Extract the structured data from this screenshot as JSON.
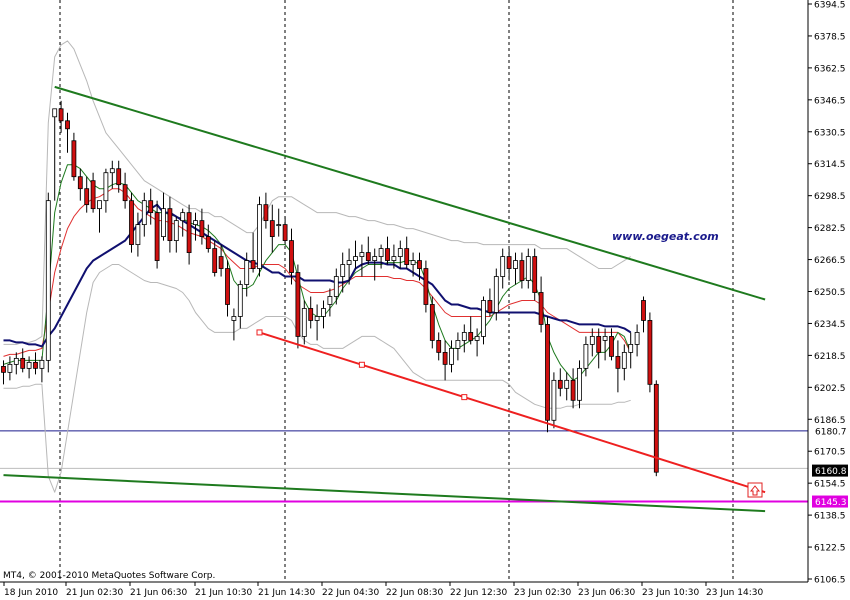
{
  "chart_data": {
    "type": "candlestick",
    "instrument_timeframe": "",
    "ylim": [
      6106.5,
      6394.5
    ],
    "y_ticks": [
      "6394.5",
      "6378.5",
      "6362.5",
      "6346.5",
      "6330.5",
      "6314.5",
      "6298.5",
      "6282.5",
      "6266.5",
      "6250.5",
      "6234.5",
      "6218.5",
      "6202.5",
      "6186.5",
      "6170.5",
      "6154.5",
      "6138.5",
      "6122.5",
      "6106.5"
    ],
    "x_ticks": [
      "18 Jun 2010",
      "21 Jun 02:30",
      "21 Jun 06:30",
      "21 Jun 10:30",
      "21 Jun 14:30",
      "22 Jun 04:30",
      "22 Jun 08:30",
      "22 Jun 12:30",
      "23 Jun 02:30",
      "23 Jun 06:30",
      "23 Jun 10:30",
      "23 Jun 14:30"
    ],
    "candles": [
      [
        6213,
        6216,
        6204,
        6210
      ],
      [
        6210,
        6218,
        6206,
        6214
      ],
      [
        6214,
        6220,
        6209,
        6217
      ],
      [
        6217,
        6222,
        6210,
        6212
      ],
      [
        6212,
        6218,
        6207,
        6215
      ],
      [
        6215,
        6220,
        6209,
        6212
      ],
      [
        6212,
        6218,
        6205,
        6216
      ],
      [
        6216,
        6300,
        6210,
        6296
      ],
      [
        6338,
        6342,
        6296,
        6342
      ],
      [
        6342,
        6346,
        6330,
        6336
      ],
      [
        6336,
        6340,
        6320,
        6332
      ],
      [
        6326,
        6330,
        6306,
        6308
      ],
      [
        6308,
        6312,
        6296,
        6302
      ],
      [
        6302,
        6308,
        6290,
        6294
      ],
      [
        6306,
        6310,
        6290,
        6292
      ],
      [
        6292,
        6296,
        6280,
        6296
      ],
      [
        6296,
        6312,
        6290,
        6310
      ],
      [
        6310,
        6316,
        6302,
        6312
      ],
      [
        6312,
        6316,
        6300,
        6304
      ],
      [
        6304,
        6310,
        6292,
        6296
      ],
      [
        6296,
        6300,
        6270,
        6274
      ],
      [
        6274,
        6290,
        6268,
        6284
      ],
      [
        6284,
        6300,
        6278,
        6296
      ],
      [
        6296,
        6302,
        6284,
        6290
      ],
      [
        6290,
        6296,
        6262,
        6266
      ],
      [
        6278,
        6300,
        6276,
        6292
      ],
      [
        6292,
        6298,
        6270,
        6276
      ],
      [
        6276,
        6288,
        6270,
        6286
      ],
      [
        6286,
        6292,
        6278,
        6290
      ],
      [
        6290,
        6294,
        6264,
        6270
      ],
      [
        6284,
        6290,
        6276,
        6286
      ],
      [
        6286,
        6292,
        6274,
        6278
      ],
      [
        6278,
        6284,
        6270,
        6272
      ],
      [
        6272,
        6276,
        6258,
        6260
      ],
      [
        6268,
        6274,
        6258,
        6262
      ],
      [
        6262,
        6266,
        6238,
        6244
      ],
      [
        6236,
        6242,
        6226,
        6238
      ],
      [
        6238,
        6256,
        6232,
        6254
      ],
      [
        6254,
        6270,
        6248,
        6266
      ],
      [
        6266,
        6280,
        6260,
        6262
      ],
      [
        6262,
        6298,
        6258,
        6294
      ],
      [
        6294,
        6300,
        6282,
        6286
      ],
      [
        6286,
        6294,
        6270,
        6278
      ],
      [
        6284,
        6292,
        6278,
        6284
      ],
      [
        6284,
        6288,
        6274,
        6276
      ],
      [
        6276,
        6282,
        6254,
        6260
      ],
      [
        6260,
        6264,
        6222,
        6228
      ],
      [
        6228,
        6246,
        6224,
        6242
      ],
      [
        6242,
        6248,
        6232,
        6236
      ],
      [
        6236,
        6244,
        6226,
        6238
      ],
      [
        6238,
        6246,
        6232,
        6242
      ],
      [
        6244,
        6252,
        6238,
        6248
      ],
      [
        6248,
        6262,
        6244,
        6258
      ],
      [
        6258,
        6270,
        6250,
        6264
      ],
      [
        6264,
        6272,
        6254,
        6266
      ],
      [
        6266,
        6276,
        6262,
        6268
      ],
      [
        6268,
        6274,
        6258,
        6270
      ],
      [
        6270,
        6278,
        6264,
        6266
      ],
      [
        6266,
        6272,
        6256,
        6268
      ],
      [
        6268,
        6274,
        6262,
        6272
      ],
      [
        6272,
        6278,
        6264,
        6266
      ],
      [
        6266,
        6274,
        6262,
        6268
      ],
      [
        6268,
        6276,
        6262,
        6272
      ],
      [
        6272,
        6278,
        6262,
        6264
      ],
      [
        6264,
        6270,
        6258,
        6266
      ],
      [
        6266,
        6270,
        6256,
        6262
      ],
      [
        6262,
        6266,
        6240,
        6244
      ],
      [
        6244,
        6248,
        6222,
        6226
      ],
      [
        6226,
        6230,
        6216,
        6220
      ],
      [
        6220,
        6226,
        6206,
        6214
      ],
      [
        6214,
        6226,
        6210,
        6222
      ],
      [
        6222,
        6230,
        6216,
        6226
      ],
      [
        6226,
        6234,
        6220,
        6230
      ],
      [
        6230,
        6238,
        6224,
        6226
      ],
      [
        6226,
        6232,
        6218,
        6228
      ],
      [
        6228,
        6248,
        6224,
        6246
      ],
      [
        6246,
        6252,
        6238,
        6240
      ],
      [
        6240,
        6262,
        6236,
        6258
      ],
      [
        6258,
        6272,
        6252,
        6268
      ],
      [
        6268,
        6272,
        6256,
        6262
      ],
      [
        6262,
        6270,
        6254,
        6266
      ],
      [
        6266,
        6270,
        6252,
        6256
      ],
      [
        6256,
        6272,
        6252,
        6268
      ],
      [
        6268,
        6272,
        6246,
        6250
      ],
      [
        6250,
        6258,
        6230,
        6234
      ],
      [
        6234,
        6238,
        6180,
        6186
      ],
      [
        6186,
        6210,
        6182,
        6206
      ],
      [
        6206,
        6212,
        6198,
        6202
      ],
      [
        6202,
        6210,
        6196,
        6206
      ],
      [
        6206,
        6212,
        6192,
        6196
      ],
      [
        6196,
        6216,
        6192,
        6212
      ],
      [
        6212,
        6228,
        6208,
        6224
      ],
      [
        6224,
        6232,
        6218,
        6228
      ],
      [
        6228,
        6232,
        6212,
        6220
      ],
      [
        6226,
        6232,
        6216,
        6228
      ],
      [
        6228,
        6232,
        6216,
        6218
      ],
      [
        6218,
        6226,
        6200,
        6212
      ],
      [
        6212,
        6224,
        6206,
        6220
      ],
      [
        6220,
        6230,
        6212,
        6224
      ],
      [
        6224,
        6234,
        6218,
        6230
      ],
      [
        6246,
        6248,
        6230,
        6236
      ],
      [
        6236,
        6240,
        6200,
        6204
      ],
      [
        6204,
        6206,
        6158,
        6160
      ]
    ],
    "bb_upper": [
      6224,
      6224,
      6224,
      6225,
      6225,
      6226,
      6228,
      6335,
      6368,
      6374,
      6376,
      6372,
      6364,
      6356,
      6346,
      6338,
      6330,
      6326,
      6322,
      6318,
      6314,
      6310,
      6306,
      6304,
      6302,
      6300,
      6298,
      6296,
      6294,
      6292,
      6292,
      6290,
      6290,
      6288,
      6288,
      6286,
      6284,
      6282,
      6280,
      6280,
      6284,
      6290,
      6296,
      6298,
      6298,
      6298,
      6296,
      6294,
      6292,
      6290,
      6290,
      6290,
      6290,
      6289,
      6288,
      6288,
      6287,
      6286,
      6286,
      6285,
      6284,
      6284,
      6283,
      6282,
      6282,
      6281,
      6280,
      6279,
      6278,
      6277,
      6276,
      6276,
      6275,
      6275,
      6275,
      6274,
      6274,
      6274,
      6274,
      6274,
      6274,
      6274,
      6274,
      6274,
      6272,
      6272,
      6272,
      6272,
      6272,
      6270,
      6268,
      6266,
      6264,
      6262,
      6262,
      6262,
      6264,
      6266,
      6268
    ],
    "bb_lower": [
      6202,
      6202,
      6202,
      6203,
      6203,
      6204,
      6204,
      6158,
      6150,
      6160,
      6180,
      6200,
      6220,
      6240,
      6255,
      6260,
      6262,
      6264,
      6264,
      6262,
      6260,
      6258,
      6256,
      6255,
      6255,
      6254,
      6253,
      6252,
      6250,
      6246,
      6240,
      6236,
      6232,
      6230,
      6230,
      6230,
      6230,
      6232,
      6232,
      6234,
      6236,
      6238,
      6238,
      6238,
      6238,
      6236,
      6230,
      6226,
      6224,
      6224,
      6222,
      6222,
      6222,
      6222,
      6224,
      6226,
      6228,
      6228,
      6228,
      6226,
      6224,
      6222,
      6218,
      6214,
      6210,
      6208,
      6206,
      6206,
      6206,
      6206,
      6206,
      6206,
      6206,
      6206,
      6206,
      6206,
      6206,
      6206,
      6206,
      6204,
      6200,
      6198,
      6196,
      6194,
      6193,
      6192,
      6192,
      6192,
      6193,
      6193,
      6194,
      6194,
      6194,
      6194,
      6194,
      6194,
      6195,
      6195,
      6196
    ],
    "ma_slow": [
      6226,
      6226,
      6225,
      6225,
      6224,
      6224,
      6223,
      6228,
      6232,
      6238,
      6244,
      6250,
      6256,
      6262,
      6266,
      6268,
      6270,
      6272,
      6274,
      6276,
      6280,
      6284,
      6288,
      6292,
      6294,
      6290,
      6290,
      6288,
      6286,
      6284,
      6282,
      6280,
      6278,
      6276,
      6274,
      6272,
      6270,
      6268,
      6266,
      6265,
      6264,
      6262,
      6260,
      6260,
      6258,
      6258,
      6258,
      6256,
      6256,
      6256,
      6256,
      6256,
      6255,
      6255,
      6256,
      6262,
      6264,
      6265,
      6265,
      6265,
      6264,
      6264,
      6262,
      6262,
      6260,
      6258,
      6256,
      6254,
      6250,
      6246,
      6244,
      6244,
      6243,
      6242,
      6242,
      6241,
      6240,
      6240,
      6240,
      6240,
      6240,
      6240,
      6240,
      6240,
      6239,
      6238,
      6237,
      6236,
      6236,
      6235,
      6234,
      6234,
      6234,
      6234,
      6233,
      6233,
      6233,
      6232,
      6230
    ],
    "ema_red": [
      6218,
      6219,
      6219,
      6220,
      6221,
      6221,
      6222,
      6240,
      6260,
      6272,
      6282,
      6288,
      6292,
      6295,
      6297,
      6298,
      6300,
      6302,
      6302,
      6300,
      6296,
      6292,
      6290,
      6288,
      6286,
      6286,
      6285,
      6284,
      6282,
      6280,
      6279,
      6278,
      6276,
      6274,
      6272,
      6268,
      6265,
      6262,
      6262,
      6262,
      6264,
      6264,
      6264,
      6264,
      6262,
      6258,
      6254,
      6252,
      6250,
      6250,
      6250,
      6251,
      6252,
      6254,
      6256,
      6258,
      6258,
      6258,
      6258,
      6258,
      6258,
      6257,
      6257,
      6256,
      6256,
      6255,
      6252,
      6248,
      6244,
      6240,
      6238,
      6238,
      6238,
      6238,
      6238,
      6238,
      6238,
      6240,
      6242,
      6244,
      6245,
      6246,
      6246,
      6246,
      6244,
      6240,
      6238,
      6236,
      6234,
      6232,
      6230,
      6230,
      6230,
      6230,
      6230,
      6230,
      6230,
      6226,
      6220
    ],
    "ema_green": [
      6214,
      6215,
      6216,
      6216,
      6216,
      6216,
      6216,
      6250,
      6290,
      6305,
      6314,
      6314,
      6312,
      6308,
      6304,
      6302,
      6302,
      6304,
      6305,
      6304,
      6300,
      6296,
      6294,
      6292,
      6290,
      6290,
      6289,
      6288,
      6287,
      6285,
      6284,
      6283,
      6281,
      6278,
      6274,
      6266,
      6256,
      6252,
      6252,
      6254,
      6260,
      6266,
      6270,
      6274,
      6274,
      6270,
      6258,
      6246,
      6240,
      6238,
      6238,
      6242,
      6246,
      6252,
      6256,
      6260,
      6262,
      6264,
      6264,
      6264,
      6265,
      6265,
      6265,
      6266,
      6266,
      6264,
      6256,
      6244,
      6234,
      6226,
      6222,
      6222,
      6224,
      6226,
      6228,
      6232,
      6236,
      6242,
      6248,
      6252,
      6254,
      6256,
      6258,
      6254,
      6246,
      6228,
      6220,
      6214,
      6210,
      6206,
      6208,
      6212,
      6216,
      6220,
      6220,
      6224,
      6230,
      6228,
      6220
    ],
    "trend_upper_green": {
      "x0": 8,
      "y0": 6353.0,
      "x1": 119,
      "y1": 6246.5
    },
    "trend_lower_red": {
      "x0": 40,
      "y0": 6230.0,
      "x1": 119,
      "y1": 6150.0
    },
    "trend_lower_green": {
      "x0": 0,
      "y0": 6158.5,
      "x1": 119,
      "y1": 6140.5
    },
    "red_anchor_indices": [
      40,
      56,
      72
    ],
    "hlines": [
      {
        "value": 6180.7,
        "label": "6180.7",
        "color": "#1a1a8c"
      },
      {
        "value": 6145.3,
        "label": "6145.3",
        "color": "#e000e0"
      },
      {
        "value": 6161.9,
        "label": "",
        "color": "#bdbdbd"
      }
    ],
    "last_price": "6160.8",
    "watermark": "www.oegeat.com",
    "copyright": "MT4, © 2001-2010 MetaQuotes Software Corp."
  }
}
